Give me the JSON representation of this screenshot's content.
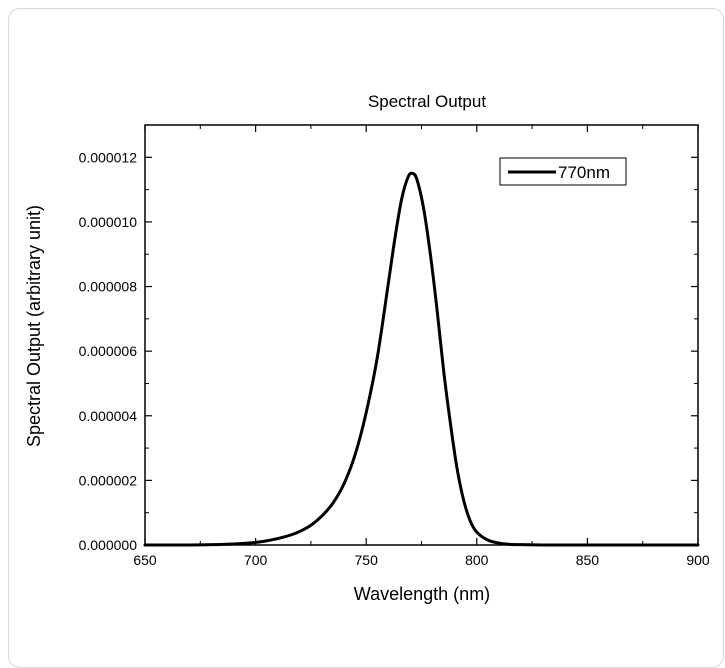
{
  "chart_data": {
    "type": "line",
    "title": "Spectral Output",
    "xlabel": "Wavelength (nm)",
    "ylabel": "Spectral Output (arbitrary unit)",
    "xlim": [
      650,
      900
    ],
    "ylim": [
      0,
      1.3e-05
    ],
    "x_ticks": [
      650,
      700,
      750,
      800,
      850,
      900
    ],
    "x_tick_labels": [
      "650",
      "700",
      "750",
      "800",
      "850",
      "900"
    ],
    "y_ticks": [
      0,
      2e-06,
      4e-06,
      6e-06,
      8e-06,
      1e-05,
      1.2e-05
    ],
    "y_tick_labels": [
      "0.000000",
      "0.000002",
      "0.000004",
      "0.000006",
      "0.000008",
      "0.000010",
      "0.000012"
    ],
    "grid": false,
    "legend_position": "top-right",
    "series": [
      {
        "name": "770nm",
        "color": "#000000",
        "x": [
          650,
          670,
          680,
          690,
          700,
          705,
          710,
          715,
          720,
          725,
          730,
          735,
          740,
          745,
          750,
          755,
          760,
          763,
          766,
          769,
          771,
          773,
          776,
          779,
          782,
          785,
          788,
          791,
          794,
          797,
          800,
          805,
          810,
          815,
          820,
          830,
          840,
          860,
          880,
          900
        ],
        "y": [
          0,
          0,
          1e-08,
          3e-08,
          8e-08,
          1.3e-07,
          2e-07,
          2.9e-07,
          4.2e-07,
          6.1e-07,
          9e-07,
          1.3e-06,
          1.9e-06,
          2.8e-06,
          4.1e-06,
          5.8e-06,
          8.1e-06,
          9.5e-06,
          1.07e-05,
          1.14e-05,
          1.15e-05,
          1.13e-05,
          1.04e-05,
          9e-06,
          7.3e-06,
          5.4e-06,
          3.8e-06,
          2.4e-06,
          1.4e-06,
          7.5e-07,
          4e-07,
          1.5e-07,
          6e-08,
          2e-08,
          1e-08,
          0,
          0,
          0,
          0,
          0
        ]
      }
    ]
  }
}
